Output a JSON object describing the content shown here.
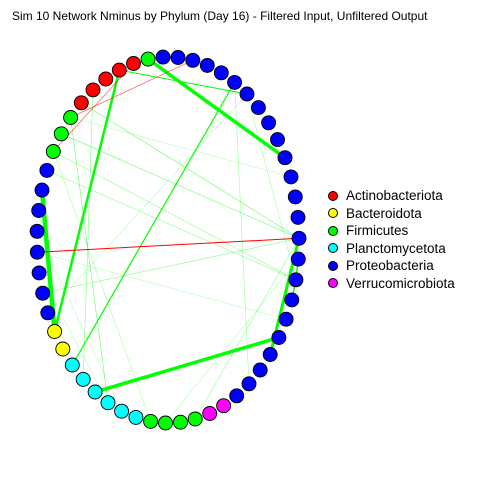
{
  "title": "Sim 10 Network Nminus by Phylum (Day 16) - Filtered Input, Unfiltered Output",
  "colors": {
    "Actinobacteriota": "#ff0000",
    "Bacteroidota": "#ffff00",
    "Firmicutes": "#00ff00",
    "Planctomycetota": "#00ffff",
    "Proteobacteria": "#0000ff",
    "Verrucomicrobiota": "#ff00ff",
    "positive_edge": "#00ff00",
    "negative_edge": "#ff0000"
  },
  "legend": [
    {
      "label": "Actinobacteriota"
    },
    {
      "label": "Bacteroidota"
    },
    {
      "label": "Firmicutes"
    },
    {
      "label": "Planctomycetota"
    },
    {
      "label": "Proteobacteria"
    },
    {
      "label": "Verrucomicrobiota"
    }
  ],
  "nodes": [
    "Proteobacteria",
    "Proteobacteria",
    "Proteobacteria",
    "Proteobacteria",
    "Proteobacteria",
    "Proteobacteria",
    "Proteobacteria",
    "Proteobacteria",
    "Proteobacteria",
    "Proteobacteria",
    "Proteobacteria",
    "Proteobacteria",
    "Proteobacteria",
    "Proteobacteria",
    "Proteobacteria",
    "Proteobacteria",
    "Proteobacteria",
    "Proteobacteria",
    "Proteobacteria",
    "Proteobacteria",
    "Verrucomicrobiota",
    "Verrucomicrobiota",
    "Firmicutes",
    "Firmicutes",
    "Firmicutes",
    "Firmicutes",
    "Planctomycetota",
    "Planctomycetota",
    "Planctomycetota",
    "Planctomycetota",
    "Planctomycetota",
    "Planctomycetota",
    "Bacteroidota",
    "Bacteroidota",
    "Proteobacteria",
    "Proteobacteria",
    "Proteobacteria",
    "Proteobacteria",
    "Proteobacteria",
    "Proteobacteria",
    "Proteobacteria",
    "Proteobacteria",
    "Firmicutes",
    "Firmicutes",
    "Firmicutes",
    "Actinobacteriota",
    "Actinobacteriota",
    "Actinobacteriota",
    "Actinobacteriota",
    "Actinobacteriota",
    "Firmicutes",
    "Proteobacteria",
    "Proteobacteria",
    "Proteobacteria",
    "Proteobacteria"
  ],
  "edges": [
    {
      "from": 50,
      "to": 6,
      "sign": "positive",
      "weight": 3.5
    },
    {
      "from": 48,
      "to": 33,
      "sign": "positive",
      "weight": 2.5
    },
    {
      "from": 40,
      "to": 33,
      "sign": "positive",
      "weight": 4.5
    },
    {
      "from": 15,
      "to": 29,
      "sign": "positive",
      "weight": 3.5
    },
    {
      "from": 16,
      "to": 10,
      "sign": "positive",
      "weight": 3
    },
    {
      "from": 48,
      "to": 2,
      "sign": "positive",
      "weight": 1
    },
    {
      "from": 31,
      "to": 1,
      "sign": "positive",
      "weight": 1.2
    },
    {
      "from": 45,
      "to": 10,
      "sign": "positive",
      "weight": 0.6
    },
    {
      "from": 43,
      "to": 10,
      "sign": "positive",
      "weight": 0.6
    },
    {
      "from": 42,
      "to": 12,
      "sign": "positive",
      "weight": 0.5
    },
    {
      "from": 41,
      "to": 12,
      "sign": "positive",
      "weight": 0.5
    },
    {
      "from": 44,
      "to": 28,
      "sign": "positive",
      "weight": 0.6
    },
    {
      "from": 46,
      "to": 30,
      "sign": "positive",
      "weight": 0.5
    },
    {
      "from": 42,
      "to": 25,
      "sign": "positive",
      "weight": 0.4
    },
    {
      "from": 35,
      "to": 10,
      "sign": "positive",
      "weight": 0.5
    },
    {
      "from": 34,
      "to": 2,
      "sign": "positive",
      "weight": 0.4
    },
    {
      "from": 10,
      "to": 22,
      "sign": "positive",
      "weight": 0.5
    },
    {
      "from": 11,
      "to": 24,
      "sign": "positive",
      "weight": 0.4
    },
    {
      "from": 1,
      "to": 18,
      "sign": "positive",
      "weight": 0.4
    },
    {
      "from": 2,
      "to": 12,
      "sign": "positive",
      "weight": 0.4
    },
    {
      "from": 27,
      "to": 38,
      "sign": "positive",
      "weight": 0.3
    },
    {
      "from": 36,
      "to": 28,
      "sign": "positive",
      "weight": 0.3
    },
    {
      "from": 32,
      "to": 39,
      "sign": "positive",
      "weight": 0.3
    },
    {
      "from": 37,
      "to": 14,
      "sign": "positive",
      "weight": 0.3
    },
    {
      "from": 44,
      "to": 7,
      "sign": "positive",
      "weight": 0.3
    },
    {
      "from": 11,
      "to": 12,
      "sign": "positive",
      "weight": 1.5
    },
    {
      "from": 12,
      "to": 13,
      "sign": "positive",
      "weight": 1.5
    },
    {
      "from": 51,
      "to": 52,
      "sign": "positive",
      "weight": 1
    },
    {
      "from": 37,
      "to": 10,
      "sign": "negative",
      "weight": 1
    },
    {
      "from": 49,
      "to": 42,
      "sign": "negative",
      "weight": 0.8
    },
    {
      "from": 53,
      "to": 44,
      "sign": "negative",
      "weight": 0.8
    },
    {
      "from": 50,
      "to": 48,
      "sign": "negative",
      "weight": 0.5
    }
  ]
}
